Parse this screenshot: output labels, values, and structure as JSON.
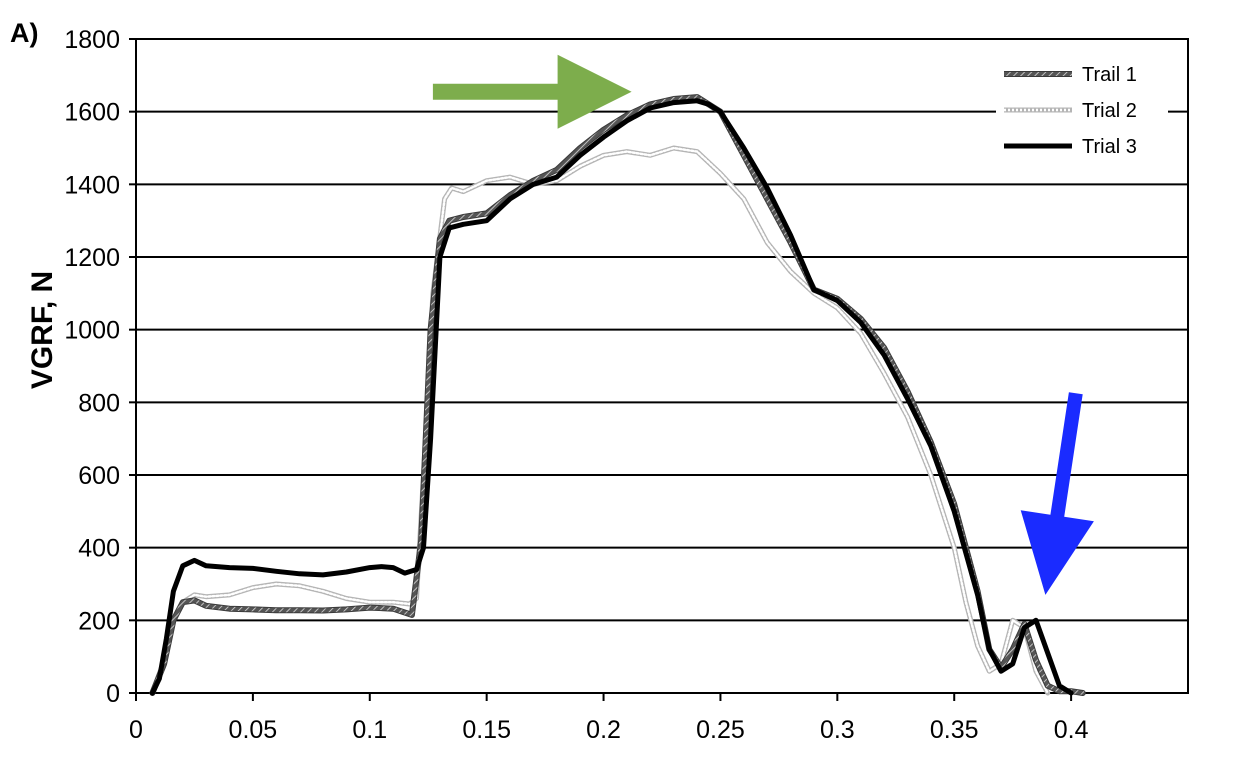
{
  "chart_data": {
    "type": "line",
    "panel_label": "A)",
    "xlabel": "",
    "ylabel": "VGRF, N",
    "xlim": [
      0,
      0.45
    ],
    "ylim": [
      0,
      1800
    ],
    "xticks": [
      "0",
      "0.05",
      "0.1",
      "0.15",
      "0.2",
      "0.25",
      "0.3",
      "0.35",
      "0.4"
    ],
    "yticks": [
      "0",
      "200",
      "400",
      "600",
      "800",
      "1000",
      "1200",
      "1400",
      "1600",
      "1800"
    ],
    "grid": "horizontal",
    "legend_position": "top-right",
    "series": [
      {
        "name": "Trail 1",
        "style": "hatched-dark",
        "x": [
          0.007,
          0.012,
          0.016,
          0.02,
          0.025,
          0.03,
          0.04,
          0.05,
          0.06,
          0.07,
          0.08,
          0.09,
          0.1,
          0.11,
          0.118,
          0.122,
          0.126,
          0.13,
          0.134,
          0.14,
          0.15,
          0.16,
          0.17,
          0.18,
          0.19,
          0.2,
          0.21,
          0.22,
          0.23,
          0.24,
          0.25,
          0.26,
          0.27,
          0.28,
          0.29,
          0.3,
          0.31,
          0.32,
          0.33,
          0.34,
          0.35,
          0.36,
          0.365,
          0.37,
          0.375,
          0.38,
          0.385,
          0.39,
          0.395,
          0.4,
          0.405
        ],
        "y": [
          0,
          80,
          200,
          250,
          255,
          240,
          232,
          230,
          228,
          228,
          227,
          230,
          235,
          232,
          215,
          420,
          1000,
          1250,
          1300,
          1310,
          1320,
          1370,
          1410,
          1440,
          1500,
          1550,
          1590,
          1620,
          1635,
          1640,
          1600,
          1480,
          1360,
          1240,
          1110,
          1085,
          1030,
          950,
          830,
          690,
          520,
          280,
          120,
          70,
          120,
          190,
          90,
          20,
          5,
          5,
          0
        ]
      },
      {
        "name": "Trial 2",
        "style": "dotted-light",
        "x": [
          0.007,
          0.012,
          0.016,
          0.02,
          0.025,
          0.03,
          0.04,
          0.05,
          0.06,
          0.07,
          0.08,
          0.09,
          0.1,
          0.11,
          0.117,
          0.12,
          0.123,
          0.127,
          0.132,
          0.135,
          0.14,
          0.15,
          0.16,
          0.17,
          0.18,
          0.19,
          0.2,
          0.21,
          0.22,
          0.23,
          0.24,
          0.25,
          0.26,
          0.27,
          0.28,
          0.29,
          0.3,
          0.31,
          0.32,
          0.33,
          0.34,
          0.35,
          0.355,
          0.36,
          0.365,
          0.37,
          0.375,
          0.38,
          0.385,
          0.39
        ],
        "y": [
          0,
          90,
          200,
          250,
          270,
          265,
          270,
          290,
          300,
          295,
          280,
          260,
          250,
          250,
          245,
          260,
          600,
          1100,
          1360,
          1390,
          1380,
          1410,
          1420,
          1400,
          1410,
          1450,
          1480,
          1490,
          1480,
          1500,
          1490,
          1430,
          1360,
          1240,
          1160,
          1100,
          1060,
          990,
          880,
          760,
          600,
          400,
          250,
          130,
          60,
          80,
          200,
          180,
          60,
          0
        ]
      },
      {
        "name": "Trial 3",
        "style": "solid-black",
        "x": [
          0.007,
          0.01,
          0.013,
          0.016,
          0.02,
          0.025,
          0.03,
          0.04,
          0.05,
          0.06,
          0.07,
          0.08,
          0.09,
          0.1,
          0.105,
          0.11,
          0.115,
          0.12,
          0.123,
          0.126,
          0.13,
          0.134,
          0.14,
          0.15,
          0.16,
          0.17,
          0.18,
          0.19,
          0.2,
          0.21,
          0.22,
          0.23,
          0.24,
          0.245,
          0.25,
          0.26,
          0.27,
          0.28,
          0.29,
          0.3,
          0.31,
          0.32,
          0.33,
          0.34,
          0.35,
          0.36,
          0.365,
          0.37,
          0.375,
          0.38,
          0.385,
          0.39,
          0.395,
          0.4
        ],
        "y": [
          0,
          40,
          150,
          280,
          350,
          365,
          350,
          345,
          343,
          335,
          328,
          325,
          333,
          345,
          348,
          345,
          330,
          340,
          400,
          700,
          1200,
          1280,
          1290,
          1300,
          1360,
          1400,
          1420,
          1480,
          1530,
          1575,
          1610,
          1625,
          1630,
          1620,
          1600,
          1500,
          1390,
          1260,
          1110,
          1080,
          1020,
          930,
          810,
          680,
          500,
          270,
          120,
          60,
          80,
          180,
          200,
          110,
          20,
          0
        ]
      }
    ],
    "annotations": [
      {
        "type": "arrow",
        "color": "#7dad4c",
        "direction": "right",
        "x_from": 0.127,
        "x_to": 0.212,
        "y_from": 1655,
        "y_to": 1655
      },
      {
        "type": "arrow",
        "color": "#1a2bff",
        "direction": "down-left",
        "x_from": 0.402,
        "x_to": 0.389,
        "y_from": 825,
        "y_to": 270
      }
    ]
  }
}
